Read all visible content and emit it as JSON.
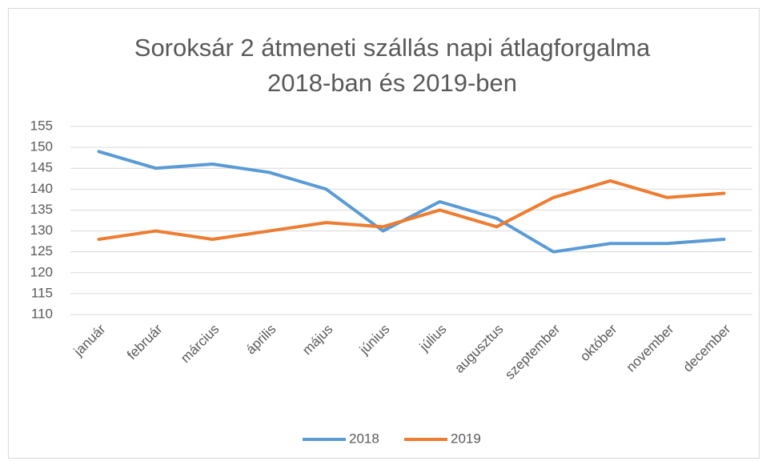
{
  "chart_data": {
    "type": "line",
    "title": [
      "Soroksár 2 átmeneti szállás napi átlagforgalma",
      "2018-ban és 2019-ben"
    ],
    "categories": [
      "január",
      "február",
      "március",
      "április",
      "május",
      "június",
      "július",
      "augusztus",
      "szeptember",
      "október",
      "november",
      "december"
    ],
    "series": [
      {
        "name": "2018",
        "color": "#5b9bd5",
        "values": [
          149,
          145,
          146,
          144,
          140,
          130,
          137,
          133,
          125,
          127,
          127,
          128
        ]
      },
      {
        "name": "2019",
        "color": "#ed7d31",
        "values": [
          128,
          130,
          128,
          130,
          132,
          131,
          135,
          131,
          138,
          142,
          138,
          139
        ]
      }
    ],
    "ylim": [
      110,
      155
    ],
    "yticks": [
      110,
      115,
      120,
      125,
      130,
      135,
      140,
      145,
      150,
      155
    ],
    "grid": true,
    "legend": "bottom"
  }
}
